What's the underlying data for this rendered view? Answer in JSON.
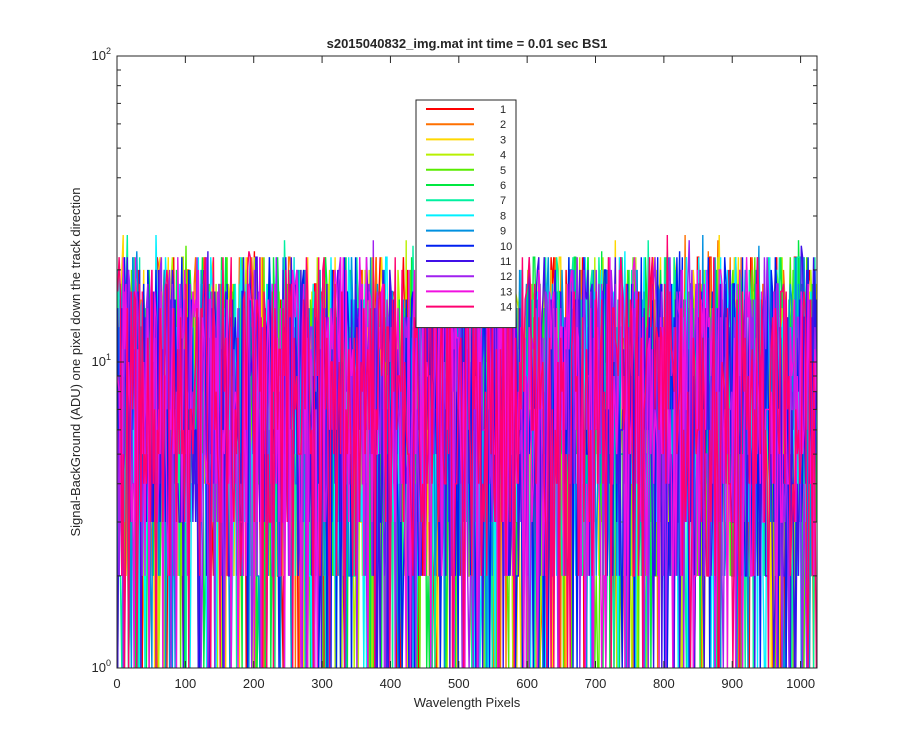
{
  "window": {
    "background": "#ffffff"
  },
  "chart_data": {
    "type": "line",
    "title": "s2015040832_img.mat int time = 0.01 sec   BS1",
    "xlabel": "Wavelength Pixels",
    "ylabel": "Signal-BackGround (ADU) one pixel down the track direction",
    "xlim": [
      0,
      1024
    ],
    "ylim": [
      1,
      100
    ],
    "yscale": "log",
    "xticks": [
      0,
      100,
      200,
      300,
      400,
      500,
      600,
      700,
      800,
      900,
      1000
    ],
    "xtick_labels": [
      "0",
      "100",
      "200",
      "300",
      "400",
      "500",
      "600",
      "700",
      "800",
      "900",
      "1000"
    ],
    "yticks": [
      1,
      10,
      100
    ],
    "ytick_labels": [
      {
        "base": "10",
        "exp": "0"
      },
      {
        "base": "10",
        "exp": "1"
      },
      {
        "base": "10",
        "exp": "2"
      }
    ],
    "grid": false,
    "legend_position": "top-center",
    "data_note_level_range": "integer ADU 1 to about 25, dense noise across all 1024 pixels",
    "series": [
      {
        "name": "1",
        "color": "#ff0000"
      },
      {
        "name": "2",
        "color": "#ff7000"
      },
      {
        "name": "3",
        "color": "#ffd800"
      },
      {
        "name": "4",
        "color": "#b8f000"
      },
      {
        "name": "5",
        "color": "#58ec00"
      },
      {
        "name": "6",
        "color": "#00e840"
      },
      {
        "name": "7",
        "color": "#00f0a0"
      },
      {
        "name": "8",
        "color": "#00f0ff"
      },
      {
        "name": "9",
        "color": "#0090e0"
      },
      {
        "name": "10",
        "color": "#0020f0"
      },
      {
        "name": "11",
        "color": "#4010e8"
      },
      {
        "name": "12",
        "color": "#a020f0"
      },
      {
        "name": "13",
        "color": "#f010e0"
      },
      {
        "name": "14",
        "color": "#ff0070"
      }
    ]
  }
}
